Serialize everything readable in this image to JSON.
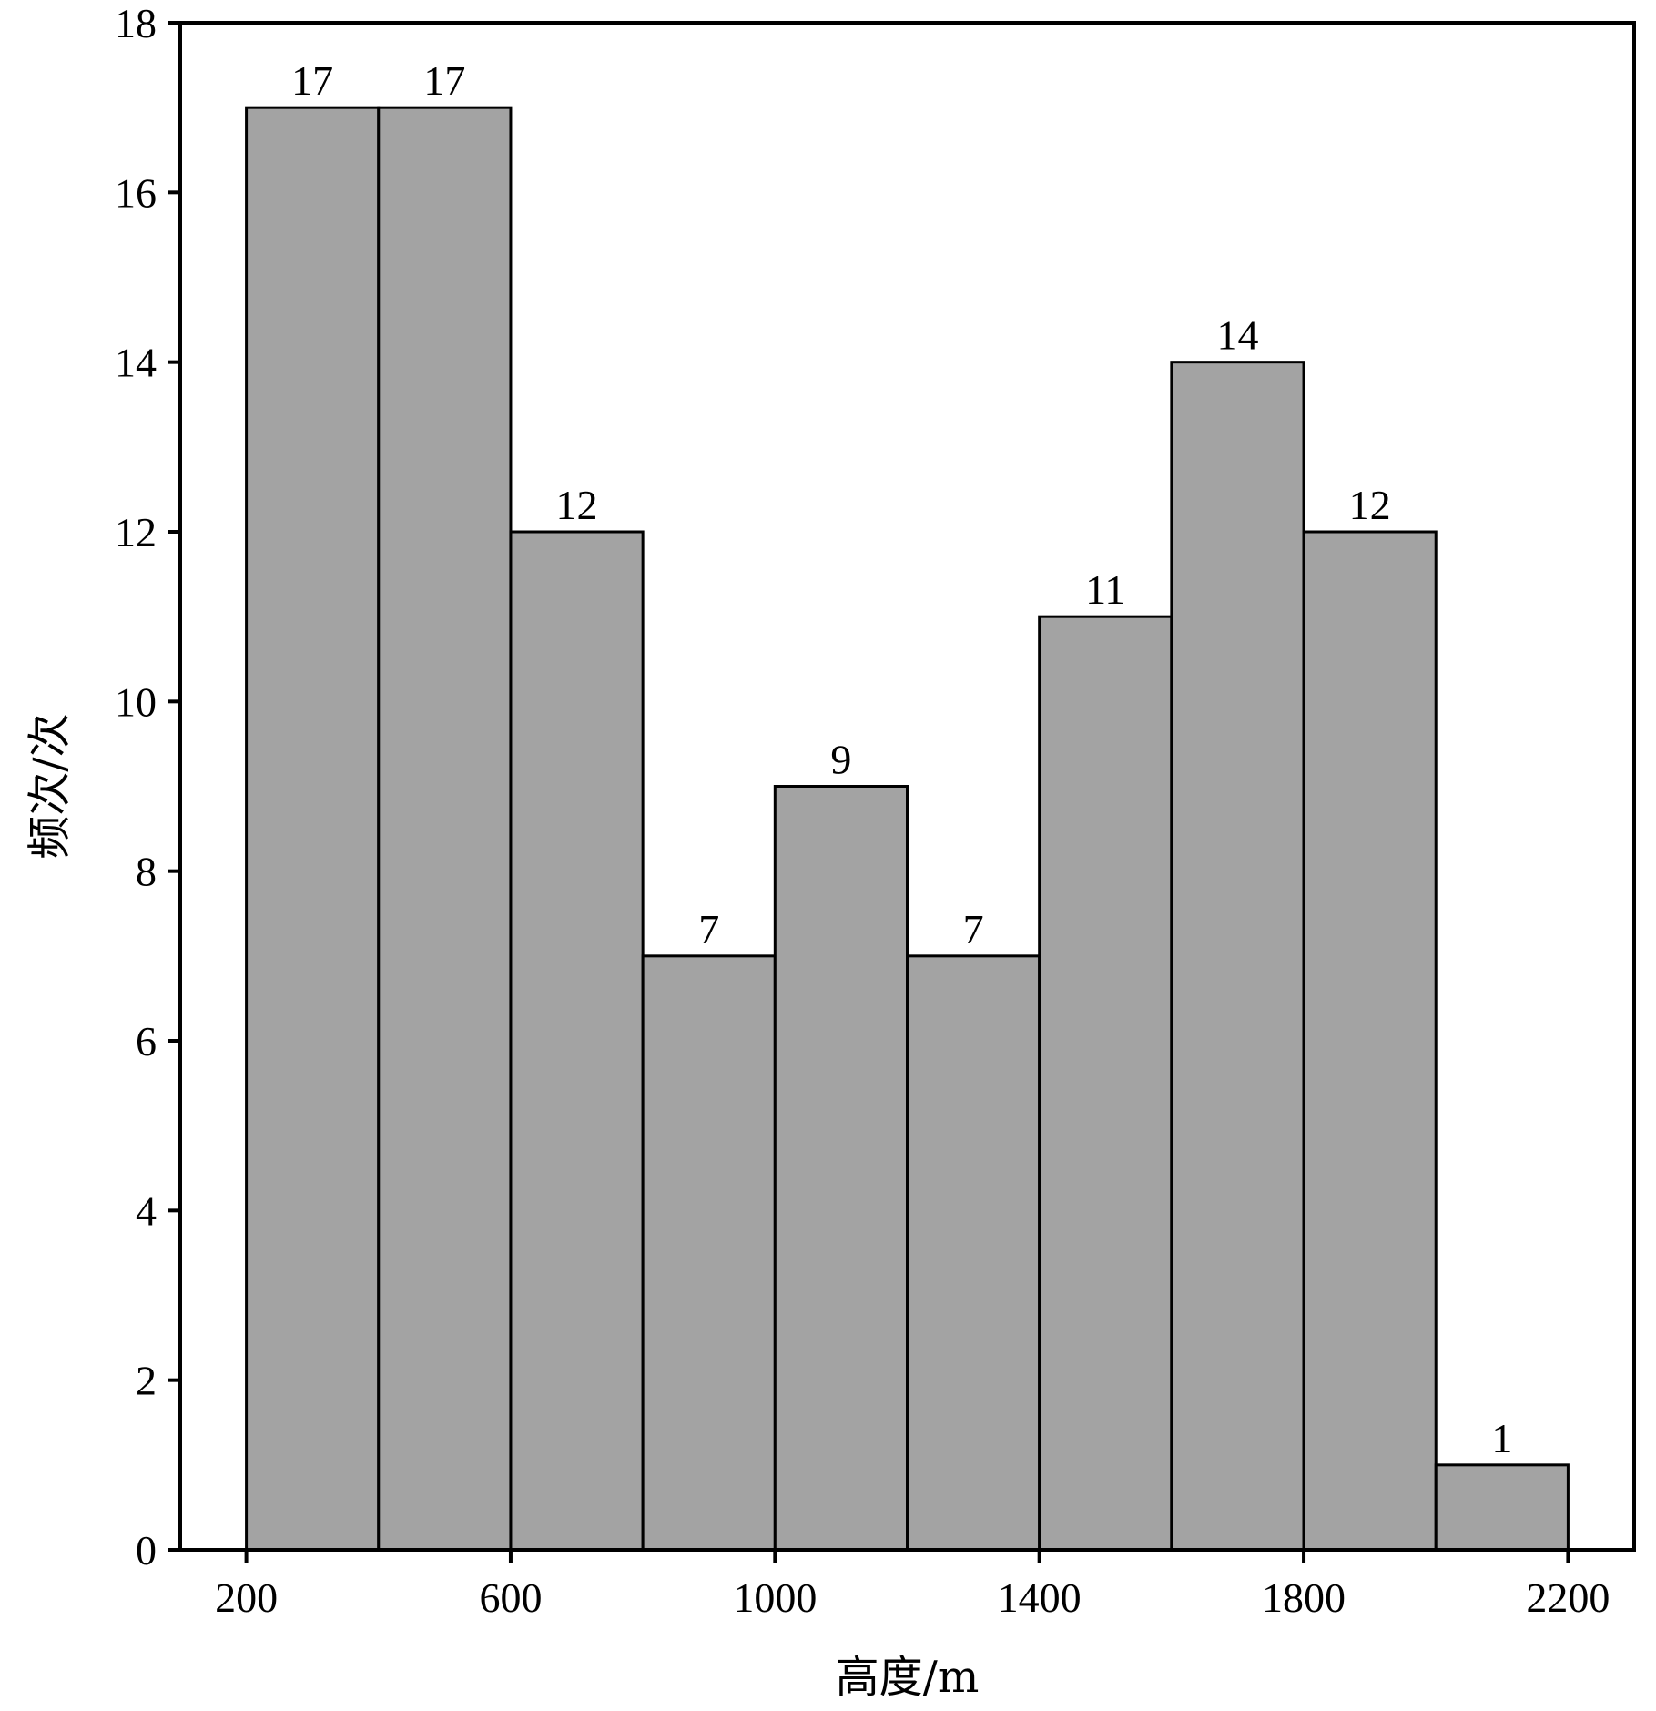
{
  "chart_data": {
    "type": "bar",
    "subtype": "histogram",
    "title": "",
    "xlabel": "高度/m",
    "ylabel": "频次/次",
    "xlim": [
      100,
      2300
    ],
    "ylim": [
      0,
      18
    ],
    "x_ticks": [
      200,
      600,
      1000,
      1400,
      1800,
      2200
    ],
    "y_ticks": [
      0,
      2,
      4,
      6,
      8,
      10,
      12,
      14,
      16,
      18
    ],
    "bin_edges": [
      200,
      400,
      600,
      800,
      1000,
      1200,
      1400,
      1600,
      1800,
      2000,
      2200
    ],
    "values": [
      17,
      17,
      12,
      7,
      9,
      7,
      11,
      14,
      12,
      1
    ],
    "data_labels": [
      "17",
      "17",
      "12",
      "7",
      "9",
      "7",
      "11",
      "14",
      "12",
      "1"
    ],
    "bar_color": "#a3a3a3",
    "edge_color": "#000000",
    "grid": false,
    "legend": "none"
  }
}
